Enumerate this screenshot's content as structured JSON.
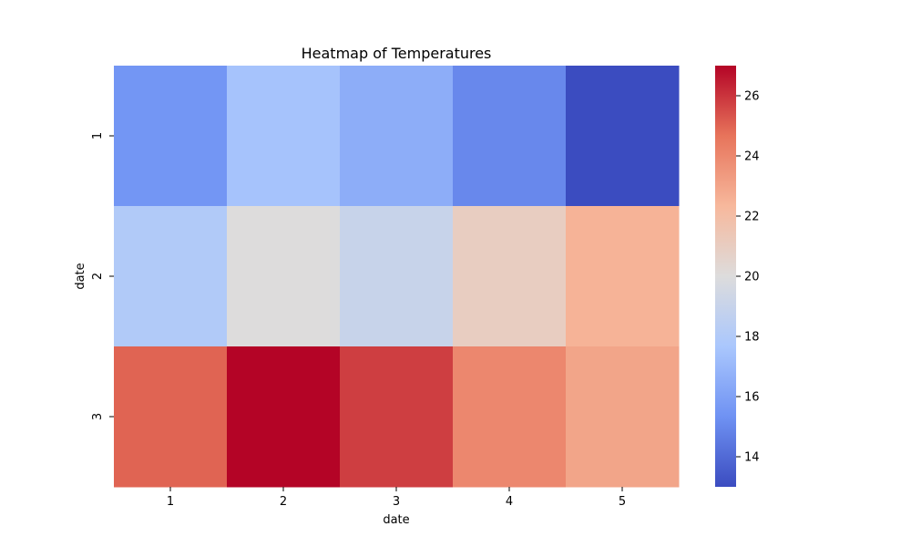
{
  "chart_data": {
    "type": "heatmap",
    "title": "Heatmap of Temperatures",
    "xlabel": "date",
    "ylabel": "date",
    "x_categories": [
      "1",
      "2",
      "3",
      "4",
      "5"
    ],
    "y_categories": [
      "1",
      "2",
      "3"
    ],
    "values": [
      [
        15.5,
        17.5,
        16.5,
        15.0,
        13.0
      ],
      [
        18.0,
        20.0,
        19.0,
        21.0,
        22.5
      ],
      [
        25.0,
        27.0,
        25.8,
        24.0,
        23.0
      ]
    ],
    "colorbar": {
      "min": 13,
      "max": 27,
      "ticks": [
        14,
        16,
        18,
        20,
        22,
        24,
        26
      ],
      "colormap": "coolwarm",
      "stops": [
        "#3b4cc0",
        "#6f92f3",
        "#aac7fd",
        "#dddcdc",
        "#f7b89c",
        "#e7745b",
        "#b40426"
      ]
    }
  }
}
